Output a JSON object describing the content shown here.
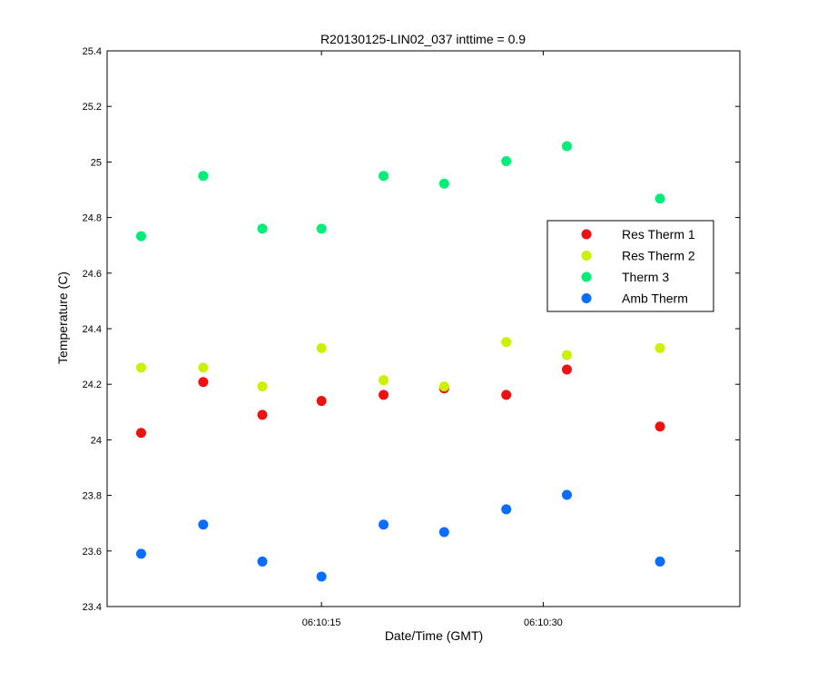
{
  "chart_data": {
    "type": "scatter",
    "title": "R20130125-LIN02_037 inttime = 0.9",
    "xlabel": "Date/Time (GMT)",
    "ylabel": "Temperature (C)",
    "x_unit": "seconds after 06:10:00 GMT",
    "xlim": [
      0.5,
      43.3
    ],
    "ylim": [
      23.4,
      25.4
    ],
    "yticks": [
      23.4,
      23.6,
      23.8,
      24,
      24.2,
      24.4,
      24.6,
      24.8,
      25,
      25.2,
      25.4
    ],
    "ytick_labels": [
      "23.4",
      "23.6",
      "23.8",
      "24",
      "24.2",
      "24.4",
      "24.6",
      "24.8",
      "25",
      "25.2",
      "25.4"
    ],
    "xticks": [
      15,
      30
    ],
    "xtick_labels": [
      "06:10:15",
      "06:10:30"
    ],
    "grid": false,
    "legend_position": "right",
    "x": [
      2.8,
      7.0,
      11.0,
      15.0,
      19.2,
      23.3,
      27.5,
      31.6,
      37.9
    ],
    "series": [
      {
        "name": "Res Therm 1",
        "color": "#ee1111",
        "values": [
          24.025,
          24.208,
          24.09,
          24.14,
          24.162,
          24.185,
          24.162,
          24.253,
          24.048
        ]
      },
      {
        "name": "Res Therm 2",
        "color": "#ccf000",
        "values": [
          24.26,
          24.26,
          24.192,
          24.33,
          24.215,
          24.192,
          24.352,
          24.305,
          24.33
        ]
      },
      {
        "name": "Therm 3",
        "color": "#00ee77",
        "values": [
          24.733,
          24.95,
          24.76,
          24.76,
          24.95,
          24.922,
          25.003,
          25.057,
          24.868
        ]
      },
      {
        "name": "Amb Therm",
        "color": "#0a6dff",
        "values": [
          23.59,
          23.695,
          23.562,
          23.508,
          23.695,
          23.668,
          23.75,
          23.802,
          23.562
        ]
      }
    ]
  }
}
